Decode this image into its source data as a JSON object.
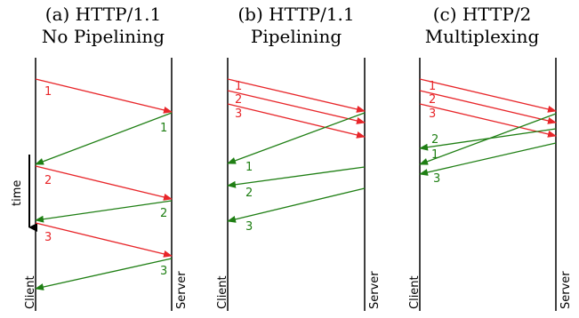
{
  "colors": {
    "request": "#e8262a",
    "response": "#1f7f14",
    "axis": "#000000"
  },
  "time_label": "time",
  "panels": [
    {
      "title_line1": "(a) HTTP/1.1",
      "title_line2": "No Pipelining",
      "client_label": "Client",
      "server_label": "Server",
      "requests": [
        {
          "label": "1"
        },
        {
          "label": "2"
        },
        {
          "label": "3"
        }
      ],
      "responses": [
        {
          "label": "1"
        },
        {
          "label": "2"
        },
        {
          "label": "3"
        }
      ]
    },
    {
      "title_line1": "(b) HTTP/1.1",
      "title_line2": "Pipelining",
      "client_label": "Client",
      "server_label": "Server",
      "requests": [
        {
          "label": "1"
        },
        {
          "label": "2"
        },
        {
          "label": "3"
        }
      ],
      "responses": [
        {
          "label": "1"
        },
        {
          "label": "2"
        },
        {
          "label": "3"
        }
      ]
    },
    {
      "title_line1": "(c) HTTP/2",
      "title_line2": "Multiplexing",
      "client_label": "Client",
      "server_label": "Server",
      "requests": [
        {
          "label": "1"
        },
        {
          "label": "2"
        },
        {
          "label": "3"
        }
      ],
      "responses": [
        {
          "label": "2"
        },
        {
          "label": "1"
        },
        {
          "label": "3"
        }
      ]
    }
  ]
}
